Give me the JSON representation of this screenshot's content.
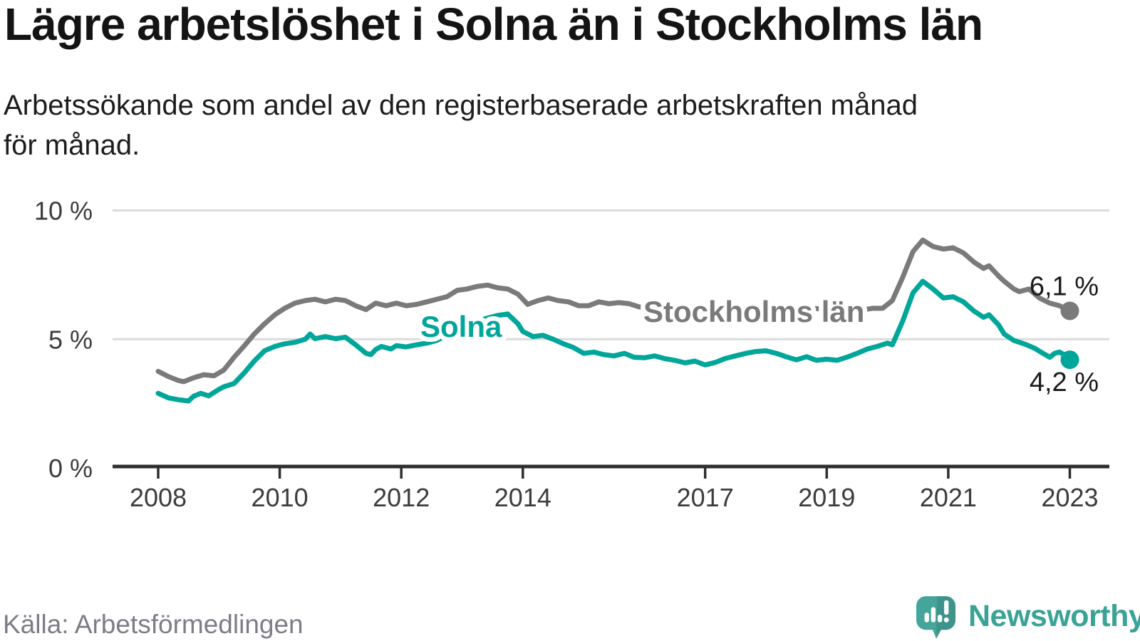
{
  "header": {
    "title": "Lägre arbetslöshet i Solna än i Stockholms län",
    "subtitle_lines": [
      "Arbetssökande som andel av den registerbaserade arbetskraften månad",
      "för månad."
    ]
  },
  "footer": {
    "source": "Källa: Arbetsförmedlingen",
    "brand": "Newsworthy",
    "brand_color": "#3aa396",
    "logo_icon": "speech-bubble-bar-chart-exclamation"
  },
  "chart_data": {
    "type": "line",
    "title": "Lägre arbetslöshet i Solna än i Stockholms län",
    "unit": "%",
    "grid": "horizontal-only",
    "x_axis": {
      "range": [
        2007.25,
        2023.6
      ],
      "ticks": [
        {
          "value": 2008,
          "label": "2008"
        },
        {
          "value": 2010,
          "label": "2010"
        },
        {
          "value": 2012,
          "label": "2012"
        },
        {
          "value": 2014,
          "label": "2014"
        },
        {
          "value": 2017,
          "label": "2017"
        },
        {
          "value": 2019,
          "label": "2019"
        },
        {
          "value": 2021,
          "label": "2021"
        },
        {
          "value": 2023,
          "label": "2023"
        }
      ]
    },
    "y_axis": {
      "range": [
        0,
        10.5
      ],
      "ticks": [
        {
          "value": 0,
          "label": "0 %"
        },
        {
          "value": 5,
          "label": "5 %"
        },
        {
          "value": 10,
          "label": "10 %"
        }
      ]
    },
    "series": [
      {
        "name": "Stockholms län",
        "color": "#7b7a7a",
        "end_value": 6.1,
        "end_label": "6,1 %",
        "points": [
          [
            2008.0,
            3.75
          ],
          [
            2008.17,
            3.55
          ],
          [
            2008.33,
            3.4
          ],
          [
            2008.42,
            3.35
          ],
          [
            2008.58,
            3.5
          ],
          [
            2008.75,
            3.62
          ],
          [
            2008.92,
            3.58
          ],
          [
            2009.08,
            3.8
          ],
          [
            2009.25,
            4.3
          ],
          [
            2009.42,
            4.75
          ],
          [
            2009.58,
            5.2
          ],
          [
            2009.75,
            5.6
          ],
          [
            2009.92,
            5.95
          ],
          [
            2010.08,
            6.2
          ],
          [
            2010.25,
            6.4
          ],
          [
            2010.42,
            6.5
          ],
          [
            2010.58,
            6.55
          ],
          [
            2010.75,
            6.45
          ],
          [
            2010.92,
            6.55
          ],
          [
            2011.08,
            6.5
          ],
          [
            2011.25,
            6.3
          ],
          [
            2011.42,
            6.15
          ],
          [
            2011.58,
            6.4
          ],
          [
            2011.75,
            6.3
          ],
          [
            2011.92,
            6.4
          ],
          [
            2012.08,
            6.3
          ],
          [
            2012.25,
            6.35
          ],
          [
            2012.42,
            6.45
          ],
          [
            2012.58,
            6.55
          ],
          [
            2012.75,
            6.65
          ],
          [
            2012.92,
            6.9
          ],
          [
            2013.08,
            6.95
          ],
          [
            2013.25,
            7.05
          ],
          [
            2013.42,
            7.1
          ],
          [
            2013.58,
            7.0
          ],
          [
            2013.75,
            6.95
          ],
          [
            2013.92,
            6.75
          ],
          [
            2014.08,
            6.35
          ],
          [
            2014.25,
            6.5
          ],
          [
            2014.42,
            6.6
          ],
          [
            2014.58,
            6.5
          ],
          [
            2014.75,
            6.45
          ],
          [
            2014.92,
            6.3
          ],
          [
            2015.08,
            6.3
          ],
          [
            2015.25,
            6.45
          ],
          [
            2015.42,
            6.38
          ],
          [
            2015.58,
            6.42
          ],
          [
            2015.75,
            6.38
          ],
          [
            2015.92,
            6.25
          ],
          [
            2016.25,
            6.3
          ],
          [
            2016.75,
            6.25
          ],
          [
            2017.25,
            6.2
          ],
          [
            2017.75,
            6.2
          ],
          [
            2018.25,
            6.15
          ],
          [
            2018.75,
            6.2
          ],
          [
            2019.17,
            6.15
          ],
          [
            2019.5,
            6.1
          ],
          [
            2019.75,
            6.2
          ],
          [
            2019.92,
            6.2
          ],
          [
            2020.08,
            6.5
          ],
          [
            2020.25,
            7.4
          ],
          [
            2020.42,
            8.4
          ],
          [
            2020.58,
            8.85
          ],
          [
            2020.75,
            8.6
          ],
          [
            2020.92,
            8.5
          ],
          [
            2021.08,
            8.55
          ],
          [
            2021.25,
            8.35
          ],
          [
            2021.42,
            8.0
          ],
          [
            2021.58,
            7.75
          ],
          [
            2021.67,
            7.85
          ],
          [
            2021.83,
            7.45
          ],
          [
            2021.92,
            7.25
          ],
          [
            2022.08,
            6.95
          ],
          [
            2022.17,
            6.85
          ],
          [
            2022.33,
            6.95
          ],
          [
            2022.5,
            6.6
          ],
          [
            2022.67,
            6.4
          ],
          [
            2022.83,
            6.3
          ],
          [
            2023.0,
            6.1
          ]
        ]
      },
      {
        "name": "Solna",
        "color": "#00a69a",
        "end_value": 4.2,
        "end_label": "4,2 %",
        "points": [
          [
            2008.0,
            2.9
          ],
          [
            2008.17,
            2.72
          ],
          [
            2008.33,
            2.65
          ],
          [
            2008.5,
            2.6
          ],
          [
            2008.58,
            2.78
          ],
          [
            2008.7,
            2.9
          ],
          [
            2008.83,
            2.8
          ],
          [
            2009.0,
            3.05
          ],
          [
            2009.08,
            3.15
          ],
          [
            2009.25,
            3.28
          ],
          [
            2009.42,
            3.7
          ],
          [
            2009.58,
            4.15
          ],
          [
            2009.75,
            4.55
          ],
          [
            2009.92,
            4.72
          ],
          [
            2010.08,
            4.82
          ],
          [
            2010.25,
            4.88
          ],
          [
            2010.42,
            5.0
          ],
          [
            2010.5,
            5.2
          ],
          [
            2010.58,
            5.02
          ],
          [
            2010.75,
            5.1
          ],
          [
            2010.92,
            5.02
          ],
          [
            2011.08,
            5.08
          ],
          [
            2011.25,
            4.78
          ],
          [
            2011.42,
            4.45
          ],
          [
            2011.5,
            4.4
          ],
          [
            2011.58,
            4.6
          ],
          [
            2011.67,
            4.72
          ],
          [
            2011.83,
            4.62
          ],
          [
            2011.92,
            4.75
          ],
          [
            2012.08,
            4.7
          ],
          [
            2012.25,
            4.78
          ],
          [
            2012.42,
            4.85
          ],
          [
            2012.58,
            4.95
          ],
          [
            2012.75,
            5.15
          ],
          [
            2012.92,
            5.35
          ],
          [
            2013.08,
            5.5
          ],
          [
            2013.25,
            5.7
          ],
          [
            2013.42,
            5.82
          ],
          [
            2013.58,
            5.92
          ],
          [
            2013.75,
            5.98
          ],
          [
            2013.92,
            5.6
          ],
          [
            2014.0,
            5.3
          ],
          [
            2014.17,
            5.1
          ],
          [
            2014.33,
            5.15
          ],
          [
            2014.5,
            5.0
          ],
          [
            2014.67,
            4.82
          ],
          [
            2014.83,
            4.68
          ],
          [
            2015.0,
            4.45
          ],
          [
            2015.17,
            4.5
          ],
          [
            2015.33,
            4.4
          ],
          [
            2015.5,
            4.35
          ],
          [
            2015.67,
            4.45
          ],
          [
            2015.83,
            4.3
          ],
          [
            2016.0,
            4.28
          ],
          [
            2016.17,
            4.35
          ],
          [
            2016.33,
            4.25
          ],
          [
            2016.5,
            4.18
          ],
          [
            2016.67,
            4.08
          ],
          [
            2016.83,
            4.15
          ],
          [
            2017.0,
            4.0
          ],
          [
            2017.17,
            4.1
          ],
          [
            2017.33,
            4.25
          ],
          [
            2017.5,
            4.35
          ],
          [
            2017.67,
            4.45
          ],
          [
            2017.83,
            4.52
          ],
          [
            2018.0,
            4.55
          ],
          [
            2018.17,
            4.45
          ],
          [
            2018.33,
            4.32
          ],
          [
            2018.5,
            4.2
          ],
          [
            2018.67,
            4.32
          ],
          [
            2018.83,
            4.18
          ],
          [
            2019.0,
            4.22
          ],
          [
            2019.17,
            4.18
          ],
          [
            2019.33,
            4.3
          ],
          [
            2019.5,
            4.45
          ],
          [
            2019.67,
            4.62
          ],
          [
            2019.83,
            4.72
          ],
          [
            2020.0,
            4.85
          ],
          [
            2020.08,
            4.78
          ],
          [
            2020.25,
            5.7
          ],
          [
            2020.42,
            6.8
          ],
          [
            2020.58,
            7.25
          ],
          [
            2020.75,
            6.95
          ],
          [
            2020.92,
            6.6
          ],
          [
            2021.08,
            6.65
          ],
          [
            2021.25,
            6.45
          ],
          [
            2021.42,
            6.1
          ],
          [
            2021.58,
            5.85
          ],
          [
            2021.67,
            5.95
          ],
          [
            2021.83,
            5.55
          ],
          [
            2021.92,
            5.2
          ],
          [
            2022.08,
            4.95
          ],
          [
            2022.25,
            4.82
          ],
          [
            2022.42,
            4.65
          ],
          [
            2022.58,
            4.42
          ],
          [
            2022.67,
            4.3
          ],
          [
            2022.75,
            4.45
          ],
          [
            2022.83,
            4.5
          ],
          [
            2022.92,
            4.38
          ],
          [
            2023.0,
            4.2
          ]
        ]
      }
    ]
  }
}
